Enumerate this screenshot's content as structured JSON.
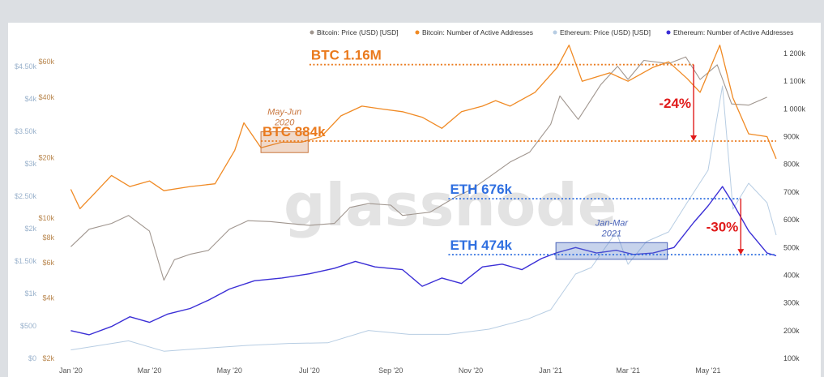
{
  "page": {
    "title": "",
    "watermark": "glassnode"
  },
  "colors": {
    "btc_price": "#a0968f",
    "btc_addresses": "#f08a24",
    "eth_price": "#b7cde3",
    "eth_addresses": "#3b2fd6",
    "annotation_red": "#e01b1b",
    "btc_label": "#ea7a1d",
    "eth_label": "#2f6fe0",
    "right_axis_text": "#444444",
    "usd_btc_axis_text": "#b9874f",
    "usd_eth_axis_text": "#9ab2cc"
  },
  "chart_data": {
    "type": "line",
    "title": "",
    "legend_position": "top-right",
    "grid": false,
    "x_ticks": [
      "Jan '20",
      "Mar '20",
      "May '20",
      "Jul '20",
      "Sep '20",
      "Nov '20",
      "Jan '21",
      "Mar '21",
      "May '21"
    ],
    "x_tick_dates": [
      "2020-01-01",
      "2020-03-01",
      "2020-05-01",
      "2020-07-01",
      "2020-09-01",
      "2020-11-01",
      "2021-01-01",
      "2021-03-01",
      "2021-05-01"
    ],
    "x_range": [
      "2019-12-20",
      "2021-06-22"
    ],
    "axes": {
      "right_addresses": {
        "range": [
          100000,
          1200000
        ],
        "tick_values": [
          100000,
          200000,
          300000,
          400000,
          500000,
          600000,
          700000,
          800000,
          900000,
          1000000,
          1100000,
          1200000
        ],
        "tick_labels": [
          "100k",
          "200k",
          "300k",
          "400k",
          "500k",
          "600k",
          "700k",
          "800k",
          "900k",
          "1 000k",
          "1 100k",
          "1 200k"
        ]
      },
      "left_btc_price": {
        "scale": "log",
        "range": [
          2000,
          66000
        ],
        "tick_values": [
          2000,
          4000,
          6000,
          8000,
          10000,
          20000,
          40000,
          60000
        ],
        "tick_labels": [
          "$2k",
          "$4k",
          "$6k",
          "$8k",
          "$10k",
          "$20k",
          "$40k",
          "$60k"
        ]
      },
      "left_eth_price": {
        "range": [
          0,
          4700
        ],
        "tick_values": [
          0,
          500,
          1000,
          1500,
          2000,
          2500,
          3000,
          3500,
          4000,
          4500
        ],
        "tick_labels": [
          "$0",
          "$500",
          "$1k",
          "$1.50k",
          "$2k",
          "$2.50k",
          "$3k",
          "$3.50k",
          "$4k",
          "$4.50k"
        ]
      }
    },
    "series": [
      {
        "name": "Bitcoin: Price (USD) [USD]",
        "axis": "left_btc_price",
        "points": [
          [
            "2020-01-01",
            7200
          ],
          [
            "2020-01-15",
            8800
          ],
          [
            "2020-02-01",
            9400
          ],
          [
            "2020-02-14",
            10300
          ],
          [
            "2020-03-01",
            8600
          ],
          [
            "2020-03-12",
            4900
          ],
          [
            "2020-03-20",
            6200
          ],
          [
            "2020-04-01",
            6600
          ],
          [
            "2020-04-15",
            6900
          ],
          [
            "2020-05-01",
            8800
          ],
          [
            "2020-05-15",
            9700
          ],
          [
            "2020-06-01",
            9600
          ],
          [
            "2020-06-15",
            9400
          ],
          [
            "2020-07-01",
            9200
          ],
          [
            "2020-07-20",
            9400
          ],
          [
            "2020-08-01",
            11300
          ],
          [
            "2020-08-15",
            11800
          ],
          [
            "2020-09-01",
            11600
          ],
          [
            "2020-09-10",
            10300
          ],
          [
            "2020-10-01",
            10700
          ],
          [
            "2020-10-21",
            12800
          ],
          [
            "2020-11-01",
            13800
          ],
          [
            "2020-11-15",
            16000
          ],
          [
            "2020-12-01",
            19000
          ],
          [
            "2020-12-16",
            21300
          ],
          [
            "2021-01-01",
            29300
          ],
          [
            "2021-01-08",
            40600
          ],
          [
            "2021-01-22",
            31000
          ],
          [
            "2021-02-08",
            46000
          ],
          [
            "2021-02-21",
            57000
          ],
          [
            "2021-03-01",
            49000
          ],
          [
            "2021-03-13",
            61000
          ],
          [
            "2021-04-01",
            58800
          ],
          [
            "2021-04-14",
            63500
          ],
          [
            "2021-04-25",
            49000
          ],
          [
            "2021-05-08",
            58000
          ],
          [
            "2021-05-19",
            37000
          ],
          [
            "2021-06-01",
            36500
          ],
          [
            "2021-06-15",
            40000
          ]
        ]
      },
      {
        "name": "Bitcoin: Number of Active Addresses",
        "axis": "right_addresses",
        "points": [
          [
            "2020-01-01",
            710000
          ],
          [
            "2020-01-08",
            640000
          ],
          [
            "2020-01-20",
            700000
          ],
          [
            "2020-02-01",
            760000
          ],
          [
            "2020-02-15",
            720000
          ],
          [
            "2020-03-01",
            740000
          ],
          [
            "2020-03-12",
            705000
          ],
          [
            "2020-04-01",
            720000
          ],
          [
            "2020-04-20",
            730000
          ],
          [
            "2020-05-05",
            850000
          ],
          [
            "2020-05-12",
            950000
          ],
          [
            "2020-05-25",
            860000
          ],
          [
            "2020-06-10",
            880000
          ],
          [
            "2020-06-25",
            880000
          ],
          [
            "2020-07-10",
            900000
          ],
          [
            "2020-07-25",
            975000
          ],
          [
            "2020-08-10",
            1010000
          ],
          [
            "2020-08-25",
            1000000
          ],
          [
            "2020-09-10",
            990000
          ],
          [
            "2020-09-25",
            970000
          ],
          [
            "2020-10-10",
            930000
          ],
          [
            "2020-10-25",
            990000
          ],
          [
            "2020-11-10",
            1010000
          ],
          [
            "2020-11-20",
            1030000
          ],
          [
            "2020-12-01",
            1010000
          ],
          [
            "2020-12-20",
            1060000
          ],
          [
            "2021-01-06",
            1150000
          ],
          [
            "2021-01-15",
            1230000
          ],
          [
            "2021-01-25",
            1100000
          ],
          [
            "2021-02-15",
            1130000
          ],
          [
            "2021-03-01",
            1100000
          ],
          [
            "2021-03-20",
            1150000
          ],
          [
            "2021-04-01",
            1170000
          ],
          [
            "2021-04-15",
            1110000
          ],
          [
            "2021-04-25",
            1060000
          ],
          [
            "2021-05-10",
            1230000
          ],
          [
            "2021-05-20",
            1040000
          ],
          [
            "2021-06-01",
            910000
          ],
          [
            "2021-06-15",
            900000
          ],
          [
            "2021-06-22",
            820000
          ]
        ]
      },
      {
        "name": "Ethereum: Price (USD) [USD]",
        "axis": "left_eth_price",
        "points": [
          [
            "2020-01-01",
            130
          ],
          [
            "2020-02-14",
            270
          ],
          [
            "2020-03-12",
            110
          ],
          [
            "2020-04-15",
            160
          ],
          [
            "2020-05-15",
            200
          ],
          [
            "2020-06-15",
            230
          ],
          [
            "2020-07-15",
            240
          ],
          [
            "2020-08-15",
            430
          ],
          [
            "2020-09-15",
            370
          ],
          [
            "2020-10-15",
            370
          ],
          [
            "2020-11-15",
            450
          ],
          [
            "2020-12-15",
            610
          ],
          [
            "2021-01-01",
            750
          ],
          [
            "2021-01-20",
            1300
          ],
          [
            "2021-02-01",
            1400
          ],
          [
            "2021-02-20",
            1950
          ],
          [
            "2021-03-01",
            1450
          ],
          [
            "2021-03-15",
            1800
          ],
          [
            "2021-04-01",
            1950
          ],
          [
            "2021-04-15",
            2400
          ],
          [
            "2021-05-01",
            2900
          ],
          [
            "2021-05-12",
            4200
          ],
          [
            "2021-05-20",
            2300
          ],
          [
            "2021-06-01",
            2700
          ],
          [
            "2021-06-15",
            2400
          ],
          [
            "2021-06-22",
            1900
          ]
        ]
      },
      {
        "name": "Ethereum: Number of Active Addresses",
        "axis": "right_addresses",
        "points": [
          [
            "2020-01-01",
            200000
          ],
          [
            "2020-01-15",
            185000
          ],
          [
            "2020-02-01",
            215000
          ],
          [
            "2020-02-15",
            250000
          ],
          [
            "2020-03-01",
            230000
          ],
          [
            "2020-03-15",
            260000
          ],
          [
            "2020-04-01",
            280000
          ],
          [
            "2020-04-15",
            310000
          ],
          [
            "2020-05-01",
            350000
          ],
          [
            "2020-05-20",
            380000
          ],
          [
            "2020-06-10",
            390000
          ],
          [
            "2020-07-01",
            405000
          ],
          [
            "2020-07-20",
            425000
          ],
          [
            "2020-08-05",
            450000
          ],
          [
            "2020-08-20",
            430000
          ],
          [
            "2020-09-10",
            420000
          ],
          [
            "2020-09-25",
            360000
          ],
          [
            "2020-10-10",
            390000
          ],
          [
            "2020-10-25",
            370000
          ],
          [
            "2020-11-10",
            430000
          ],
          [
            "2020-11-25",
            440000
          ],
          [
            "2020-12-10",
            420000
          ],
          [
            "2020-12-25",
            460000
          ],
          [
            "2021-01-05",
            480000
          ],
          [
            "2021-01-20",
            500000
          ],
          [
            "2021-02-05",
            480000
          ],
          [
            "2021-02-20",
            490000
          ],
          [
            "2021-03-05",
            475000
          ],
          [
            "2021-03-20",
            480000
          ],
          [
            "2021-04-05",
            500000
          ],
          [
            "2021-04-20",
            590000
          ],
          [
            "2021-05-01",
            650000
          ],
          [
            "2021-05-12",
            720000
          ],
          [
            "2021-05-20",
            660000
          ],
          [
            "2021-06-01",
            560000
          ],
          [
            "2021-06-15",
            480000
          ],
          [
            "2021-06-22",
            470000
          ]
        ]
      }
    ],
    "annotations": {
      "btc_high": {
        "label": "BTC 1.16M",
        "value": 1160000
      },
      "btc_low": {
        "label": "BTC 884k",
        "value": 884000
      },
      "eth_high": {
        "label": "ETH 676k",
        "value": 676000
      },
      "eth_low": {
        "label": "ETH 474k",
        "value": 474000
      },
      "btc_drop": {
        "label": "-24%",
        "date": "2021-04-20"
      },
      "eth_drop": {
        "label": "-30%",
        "date": "2021-05-26"
      },
      "btc_period": {
        "label_line1": "May-Jun",
        "label_line2": "2020",
        "start": "2020-05-25",
        "end": "2020-06-30"
      },
      "eth_period": {
        "label_line1": "Jan-Mar",
        "label_line2": "2021",
        "start": "2021-01-05",
        "end": "2021-03-31"
      }
    }
  }
}
